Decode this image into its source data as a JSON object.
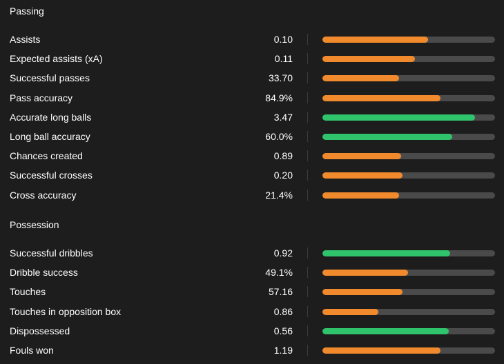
{
  "colors": {
    "background": "#1d1d1d",
    "orange": "#f08a2c",
    "green": "#2fc36b",
    "track": "#4a4a4a"
  },
  "sections": [
    {
      "title": "Passing",
      "stats": [
        {
          "label": "Assists",
          "value": "0.10",
          "fill": 0.61,
          "color": "orange"
        },
        {
          "label": "Expected assists (xA)",
          "value": "0.11",
          "fill": 0.535,
          "color": "orange"
        },
        {
          "label": "Successful passes",
          "value": "33.70",
          "fill": 0.445,
          "color": "orange"
        },
        {
          "label": "Pass accuracy",
          "value": "84.9%",
          "fill": 0.685,
          "color": "orange"
        },
        {
          "label": "Accurate long balls",
          "value": "3.47",
          "fill": 0.885,
          "color": "green"
        },
        {
          "label": "Long ball accuracy",
          "value": "60.0%",
          "fill": 0.75,
          "color": "green"
        },
        {
          "label": "Chances created",
          "value": "0.89",
          "fill": 0.455,
          "color": "orange"
        },
        {
          "label": "Successful crosses",
          "value": "0.20",
          "fill": 0.465,
          "color": "orange"
        },
        {
          "label": "Cross accuracy",
          "value": "21.4%",
          "fill": 0.445,
          "color": "orange"
        }
      ]
    },
    {
      "title": "Possession",
      "stats": [
        {
          "label": "Successful dribbles",
          "value": "0.92",
          "fill": 0.74,
          "color": "green"
        },
        {
          "label": "Dribble success",
          "value": "49.1%",
          "fill": 0.495,
          "color": "orange"
        },
        {
          "label": "Touches",
          "value": "57.16",
          "fill": 0.465,
          "color": "orange"
        },
        {
          "label": "Touches in opposition box",
          "value": "0.86",
          "fill": 0.325,
          "color": "orange"
        },
        {
          "label": "Dispossessed",
          "value": "0.56",
          "fill": 0.73,
          "color": "green"
        },
        {
          "label": "Fouls won",
          "value": "1.19",
          "fill": 0.685,
          "color": "orange"
        }
      ]
    }
  ]
}
